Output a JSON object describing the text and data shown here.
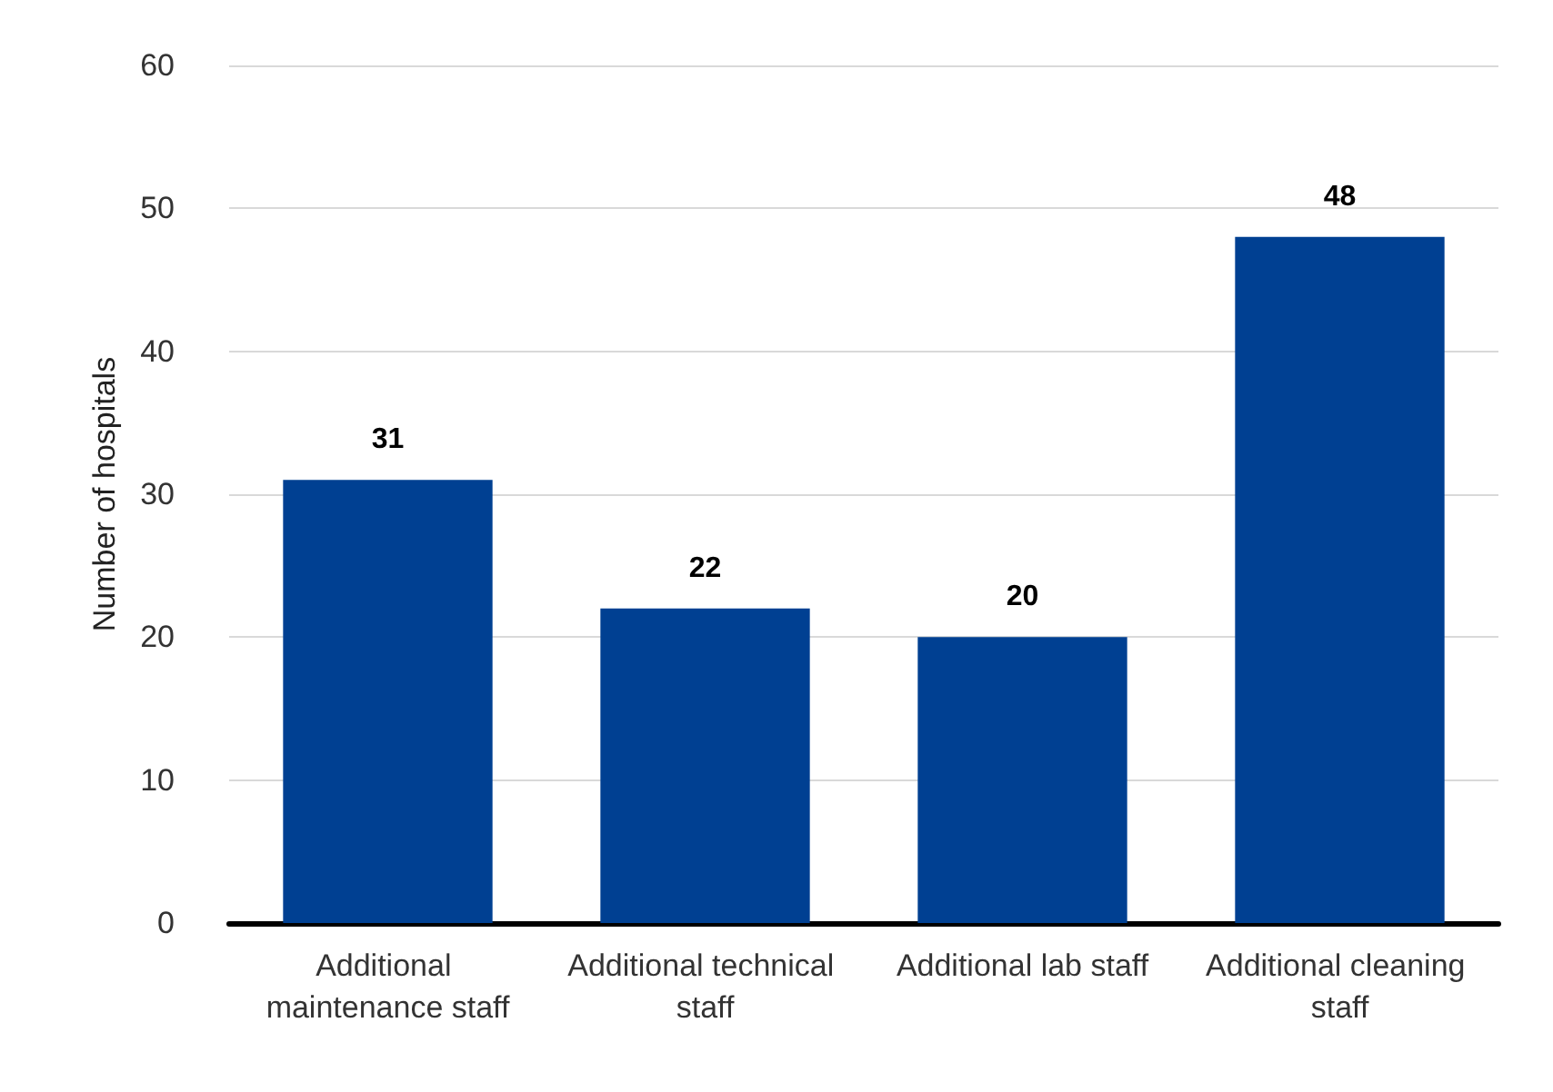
{
  "chart_data": {
    "type": "bar",
    "ylabel": "Number of hospitals",
    "categories": [
      "Additional maintenance staff",
      "Additional technical staff",
      "Additional lab staff",
      "Additional cleaning staff"
    ],
    "values": [
      31,
      22,
      20,
      48
    ],
    "color": "#004092",
    "ylim": [
      0,
      60
    ],
    "yticks": [
      0,
      10,
      20,
      30,
      40,
      50,
      60
    ],
    "grid": "y",
    "data_labels": true
  }
}
